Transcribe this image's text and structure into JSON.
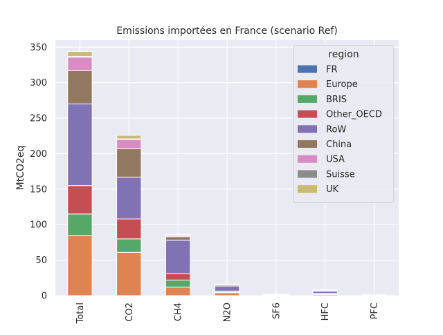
{
  "chart_data": {
    "type": "bar",
    "stacked": true,
    "title": "Emissions importées en France (scenario Ref)",
    "xlabel": "",
    "ylabel": "MtCO2eq",
    "ylim": [
      0,
      360
    ],
    "yticks": [
      0,
      50,
      100,
      150,
      200,
      250,
      300,
      350
    ],
    "grid": true,
    "legend_title": "region",
    "legend_position": "top-right",
    "categories": [
      "Total",
      "CO2",
      "CH4",
      "N2O",
      "SF6",
      "HFC",
      "PFC"
    ],
    "series": [
      {
        "name": "FR",
        "color": "#4c72b0",
        "values": [
          0,
          0,
          0,
          0,
          0,
          0,
          0
        ]
      },
      {
        "name": "Europe",
        "color": "#dd8452",
        "values": [
          85,
          61,
          12,
          4,
          0.3,
          1.5,
          0.2
        ]
      },
      {
        "name": "BRIS",
        "color": "#55a868",
        "values": [
          30,
          19,
          10,
          1,
          0.1,
          0.5,
          0.1
        ]
      },
      {
        "name": "Other_OECD",
        "color": "#c44e52",
        "values": [
          40,
          28,
          9,
          1.5,
          0.2,
          1,
          0.1
        ]
      },
      {
        "name": "RoW",
        "color": "#8172b3",
        "values": [
          115,
          59,
          47,
          7,
          0.6,
          3,
          0.3
        ]
      },
      {
        "name": "China",
        "color": "#937860",
        "values": [
          47,
          40,
          5,
          1.5,
          0.5,
          1.5,
          0.3
        ]
      },
      {
        "name": "USA",
        "color": "#da8bc3",
        "values": [
          19,
          13,
          2,
          0.5,
          0.1,
          0.5,
          0.1
        ]
      },
      {
        "name": "Suisse",
        "color": "#8c8c8c",
        "values": [
          1,
          0.8,
          0.1,
          0.1,
          0,
          0.1,
          0
        ]
      },
      {
        "name": "UK",
        "color": "#ccb974",
        "values": [
          7,
          5,
          1,
          0.4,
          0.05,
          0.3,
          0.05
        ]
      }
    ]
  }
}
